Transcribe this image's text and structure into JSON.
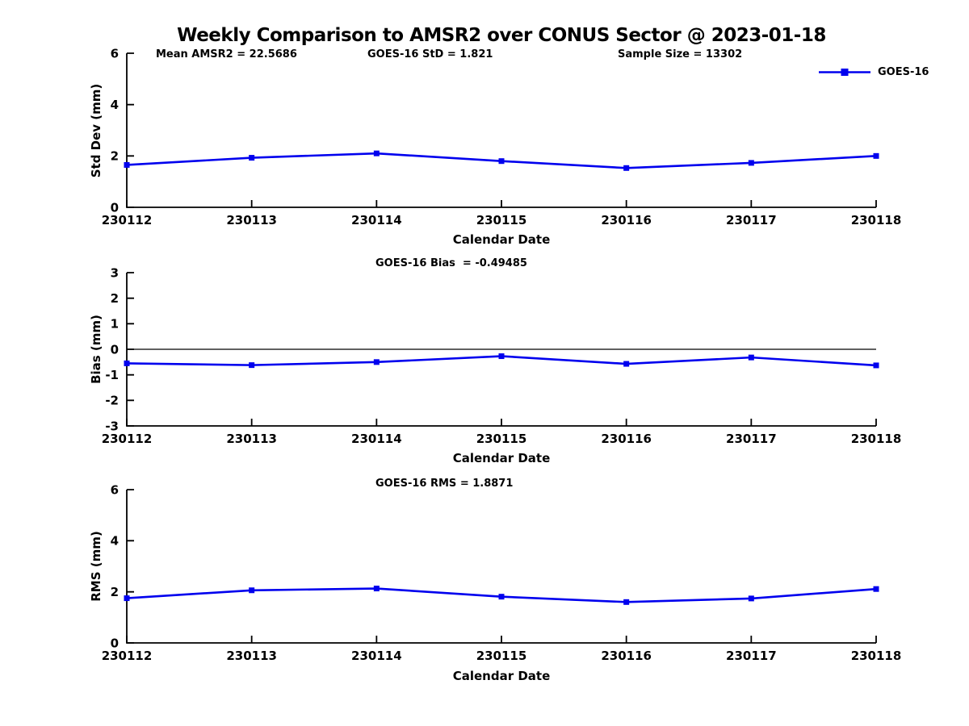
{
  "title": "Weekly Comparison to AMSR2 over CONUS Sector @ 2023-01-18",
  "header_stats": [
    {
      "label": "Mean AMSR2 = 22.5686"
    },
    {
      "label": "GOES-16 StD = 1.821"
    },
    {
      "label": "Sample Size = 13302"
    }
  ],
  "legend": {
    "label": "GOES-16",
    "position": "top-right"
  },
  "colors": {
    "line": "#0000ee",
    "axis": "#000000",
    "text": "#000000",
    "background": "#ffffff"
  },
  "chart_data": [
    {
      "type": "line",
      "title": "",
      "ylabel": "Std Dev (mm)",
      "xlabel": "Calendar Date",
      "categories": [
        "230112",
        "230113",
        "230114",
        "230115",
        "230116",
        "230117",
        "230118"
      ],
      "series": [
        {
          "name": "GOES-16",
          "values": [
            1.65,
            1.93,
            2.1,
            1.8,
            1.53,
            1.73,
            2.0
          ]
        }
      ],
      "ylim": [
        0,
        6
      ],
      "yticks": [
        0,
        2,
        4,
        6
      ],
      "grid": false,
      "zero_line": false,
      "legend_position": "top-right"
    },
    {
      "type": "line",
      "title": "GOES-16 Bias  = -0.49485",
      "ylabel": "Bias (mm)",
      "xlabel": "Calendar Date",
      "categories": [
        "230112",
        "230113",
        "230114",
        "230115",
        "230116",
        "230117",
        "230118"
      ],
      "series": [
        {
          "name": "GOES-16",
          "values": [
            -0.55,
            -0.62,
            -0.5,
            -0.27,
            -0.57,
            -0.32,
            -0.63
          ]
        }
      ],
      "ylim": [
        -3,
        3
      ],
      "yticks": [
        -3,
        -2,
        -1,
        0,
        1,
        2,
        3
      ],
      "grid": false,
      "zero_line": true
    },
    {
      "type": "line",
      "title": "GOES-16 RMS = 1.8871",
      "ylabel": "RMS (mm)",
      "xlabel": "Calendar Date",
      "categories": [
        "230112",
        "230113",
        "230114",
        "230115",
        "230116",
        "230117",
        "230118"
      ],
      "series": [
        {
          "name": "GOES-16",
          "values": [
            1.75,
            2.06,
            2.13,
            1.81,
            1.6,
            1.74,
            2.11
          ]
        }
      ],
      "ylim": [
        0,
        6
      ],
      "yticks": [
        0,
        2,
        4,
        6
      ],
      "grid": false,
      "zero_line": false
    }
  ]
}
